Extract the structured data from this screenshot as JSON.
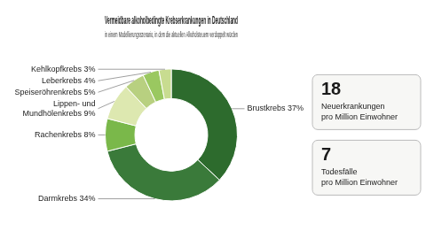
{
  "chart_data": {
    "type": "doughnut",
    "title": "Vermeidbare alkoholbedingte Krebserkrankungen in Deutschland",
    "subtitle": "in einem Modellierungsszenario, in dem die aktuellen Alkoholsteuern verdoppelt würden",
    "values": [
      37,
      34,
      8,
      9,
      5,
      4,
      3
    ],
    "value_labels": [
      "Brustkrebs 37%",
      "Darmkrebs 34%",
      "Rachenkrebs 8%",
      "Lippen- und\nMundhölenkrebs 9%",
      "Speiseröhrenkrebs 5%",
      "Leberkrebs 4%",
      "Kehlkopfkrebs 3%"
    ],
    "colors": [
      "#2d6b2d",
      "#3a7a3a",
      "#7ab84a",
      "#dde8b0",
      "#b8d080",
      "#9ac860",
      "#c8dc90"
    ],
    "data_labels": true,
    "annotations": [
      {
        "value": 18,
        "label": "Neuerkrankungen\npro Million Einwohner"
      },
      {
        "value": 7,
        "label": "Todesfälle\npro Million Einwohner"
      }
    ]
  }
}
